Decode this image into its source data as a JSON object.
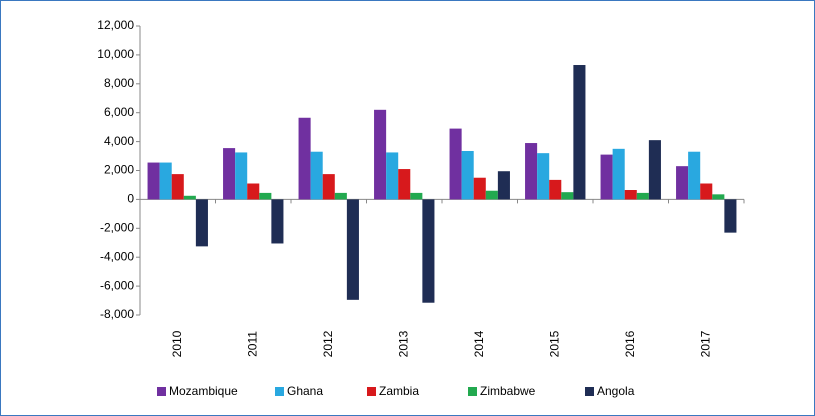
{
  "chart_data": {
    "type": "bar",
    "categories": [
      "2010",
      "2011",
      "2012",
      "2013",
      "2014",
      "2015",
      "2016",
      "2017"
    ],
    "series": [
      {
        "name": "Mozambique",
        "color": "#7030a0",
        "values": [
          2550,
          3550,
          5650,
          6200,
          4900,
          3900,
          3100,
          2300
        ]
      },
      {
        "name": "Ghana",
        "color": "#29a8e0",
        "values": [
          2550,
          3250,
          3300,
          3250,
          3350,
          3200,
          3500,
          3300
        ]
      },
      {
        "name": "Zambia",
        "color": "#d7191c",
        "values": [
          1750,
          1100,
          1750,
          2100,
          1500,
          1350,
          650,
          1100
        ]
      },
      {
        "name": "Zimbabwe",
        "color": "#22a94f",
        "values": [
          250,
          450,
          450,
          450,
          600,
          500,
          450,
          350
        ]
      },
      {
        "name": "Angola",
        "color": "#1f2d54",
        "values": [
          -3250,
          -3050,
          -6950,
          -7150,
          1950,
          9300,
          4100,
          -2300
        ]
      }
    ],
    "ylim": [
      -8000,
      12000
    ],
    "yticks": [
      {
        "value": -8000,
        "label": "-8,000"
      },
      {
        "value": -6000,
        "label": "-6,000"
      },
      {
        "value": -4000,
        "label": "-4,000"
      },
      {
        "value": -2000,
        "label": "-2,000"
      },
      0,
      {
        "value": 2000,
        "label": "2,000"
      },
      {
        "value": 4000,
        "label": "4,000"
      },
      {
        "value": 6000,
        "label": "6,000"
      },
      {
        "value": 8000,
        "label": "8,000"
      },
      {
        "value": 10000,
        "label": "10,000"
      },
      {
        "value": 12000,
        "label": "12,000"
      }
    ],
    "legend": "bottom"
  }
}
